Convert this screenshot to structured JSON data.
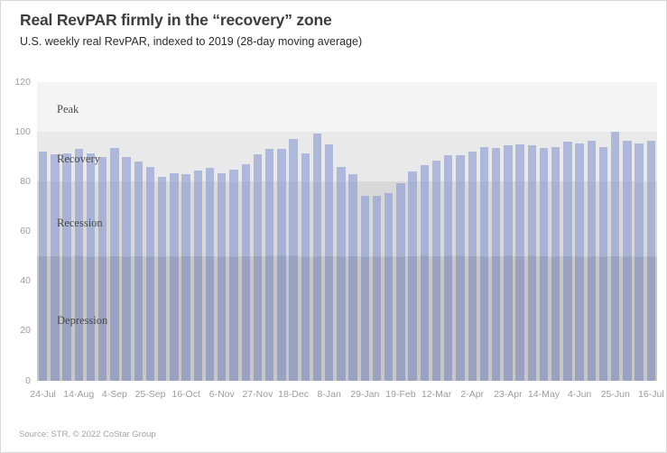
{
  "title": "Real RevPAR firmly in the “recovery” zone",
  "subtitle": "U.S. weekly real RevPAR, indexed to 2019 (28-day moving average)",
  "source": "Source: STR. © 2022 CoStar Group",
  "chart_data": {
    "type": "bar",
    "title": "Real RevPAR firmly in the “recovery” zone",
    "subtitle": "U.S. weekly real RevPAR, indexed to 2019 (28-day moving average)",
    "xlabel": "",
    "ylabel": "",
    "ylim": [
      0,
      120
    ],
    "yticks": [
      0,
      20,
      40,
      60,
      80,
      100,
      120
    ],
    "grid": false,
    "legend": "none",
    "x": [
      "24-Jul",
      "31-Jul",
      "7-Aug",
      "14-Aug",
      "21-Aug",
      "28-Aug",
      "4-Sep",
      "11-Sep",
      "18-Sep",
      "25-Sep",
      "2-Oct",
      "9-Oct",
      "16-Oct",
      "23-Oct",
      "30-Oct",
      "6-Nov",
      "13-Nov",
      "20-Nov",
      "27-Nov",
      "4-Dec",
      "11-Dec",
      "18-Dec",
      "25-Dec",
      "1-Jan",
      "8-Jan",
      "15-Jan",
      "22-Jan",
      "29-Jan",
      "5-Feb",
      "12-Feb",
      "19-Feb",
      "26-Feb",
      "5-Mar",
      "12-Mar",
      "19-Mar",
      "26-Mar",
      "2-Apr",
      "9-Apr",
      "16-Apr",
      "23-Apr",
      "30-Apr",
      "7-May",
      "14-May",
      "21-May",
      "28-May",
      "4-Jun",
      "11-Jun",
      "18-Jun",
      "25-Jun",
      "2-Jul",
      "9-Jul",
      "16-Jul"
    ],
    "values": [
      92,
      91,
      91.5,
      93,
      91.5,
      90,
      93.5,
      90,
      88,
      86,
      82,
      83.5,
      83,
      84.5,
      85.5,
      83.5,
      85,
      87,
      91,
      93,
      93,
      97,
      91.5,
      99.5,
      95,
      86,
      83,
      74.5,
      74.5,
      75.5,
      79.5,
      84,
      86.5,
      88.5,
      90.5,
      90.5,
      92,
      94,
      93.5,
      94.5,
      95,
      94.5,
      93.5,
      94,
      96,
      95.5,
      96.5,
      94,
      100,
      96.5,
      95.5,
      96.5
    ],
    "x_tick_labels": [
      "24-Jul",
      "14-Aug",
      "4-Sep",
      "25-Sep",
      "16-Oct",
      "6-Nov",
      "27-Nov",
      "18-Dec",
      "8-Jan",
      "29-Jan",
      "19-Feb",
      "12-Mar",
      "2-Apr",
      "23-Apr",
      "14-May",
      "4-Jun",
      "25-Jun",
      "16-Jul"
    ],
    "x_tick_interval": 3,
    "zones": [
      {
        "label": "Peak",
        "from": 100,
        "to": 120,
        "bg": "#f4f4f4"
      },
      {
        "label": "Recovery",
        "from": 80,
        "to": 100,
        "bg": "#e9e9e9"
      },
      {
        "label": "Recession",
        "from": 50,
        "to": 80,
        "bg": "#d8d8d8"
      },
      {
        "label": "Depression",
        "from": 0,
        "to": 50,
        "bg": "#c7c7c7"
      }
    ],
    "bar_color_recovery": "#aeb8da",
    "bar_color_recession": "#a8b2d4",
    "bar_color_depression": "#99a2c1"
  }
}
